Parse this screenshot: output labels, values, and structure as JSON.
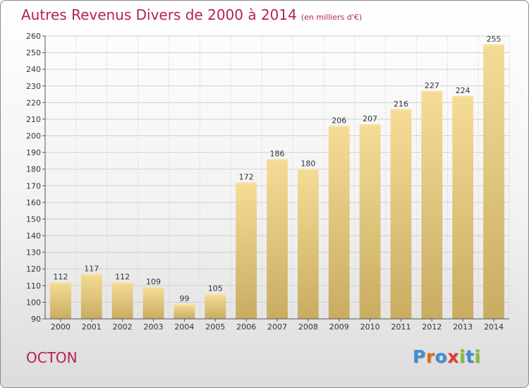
{
  "chart_data": {
    "type": "bar",
    "title": "Autres Revenus Divers de 2000 à 2014",
    "unit": "(en milliers d'€)",
    "categories": [
      "2000",
      "2001",
      "2002",
      "2003",
      "2004",
      "2005",
      "2006",
      "2007",
      "2008",
      "2009",
      "2010",
      "2011",
      "2012",
      "2013",
      "2014"
    ],
    "values": [
      112,
      117,
      112,
      109,
      99,
      105,
      172,
      186,
      180,
      206,
      207,
      216,
      227,
      224,
      255
    ],
    "ylim": [
      90,
      260
    ],
    "yticks": [
      90,
      100,
      110,
      120,
      130,
      140,
      150,
      160,
      170,
      180,
      190,
      200,
      210,
      220,
      230,
      240,
      250,
      260
    ],
    "grid": true,
    "colors": {
      "bar": "#e9cf86",
      "title": "#b81f5a"
    }
  },
  "footer": {
    "city": "OCTON",
    "logo_letters": [
      {
        "ch": "P",
        "color": "#3d8ed8"
      },
      {
        "ch": "r",
        "color": "#e36b1d"
      },
      {
        "ch": "o",
        "color": "#3d8ed8"
      },
      {
        "ch": "x",
        "color": "#e83b2b"
      },
      {
        "ch": "i",
        "color": "#8cbb2f"
      },
      {
        "ch": "t",
        "color": "#3d8ed8"
      },
      {
        "ch": "i",
        "color": "#8cbb2f"
      }
    ]
  }
}
